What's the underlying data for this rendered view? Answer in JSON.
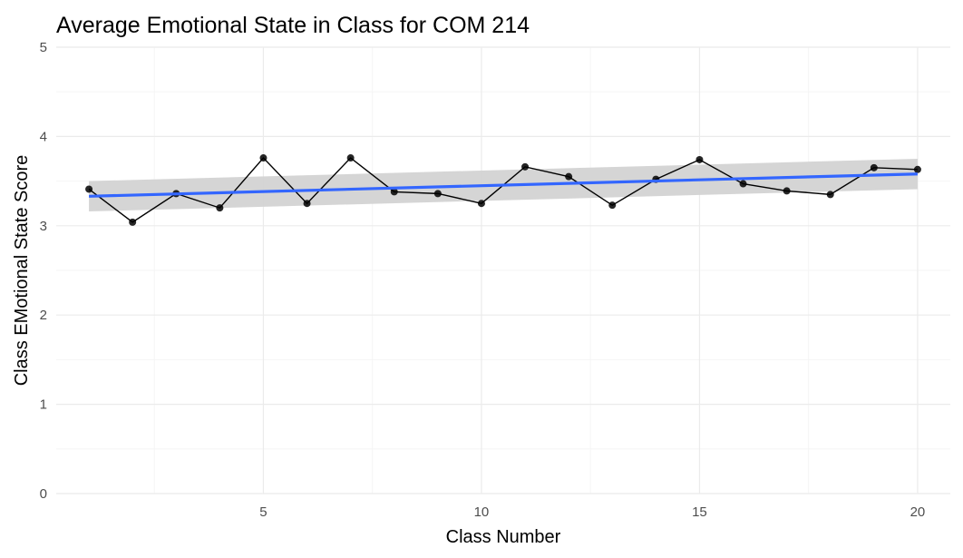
{
  "chart_data": {
    "type": "line",
    "title": "Average Emotional State in Class for COM 214",
    "xlabel": "Class Number",
    "ylabel": "Class EMotional State Score",
    "xlim": [
      0.25,
      20.75
    ],
    "ylim": [
      0,
      5
    ],
    "x_ticks": [
      5,
      10,
      15,
      20
    ],
    "y_ticks": [
      0,
      1,
      2,
      3,
      4,
      5
    ],
    "grid": true,
    "x": [
      1,
      2,
      3,
      4,
      5,
      6,
      7,
      8,
      9,
      10,
      11,
      12,
      13,
      14,
      15,
      16,
      17,
      18,
      19,
      20
    ],
    "values": [
      3.41,
      3.04,
      3.36,
      3.2,
      3.76,
      3.25,
      3.76,
      3.38,
      3.36,
      3.25,
      3.66,
      3.55,
      3.23,
      3.52,
      3.74,
      3.47,
      3.39,
      3.35,
      3.65,
      3.63
    ],
    "trend": {
      "start": 3.33,
      "end": 3.58,
      "ci_low_start": 3.16,
      "ci_high_start": 3.5,
      "ci_low_end": 3.41,
      "ci_high_end": 3.75
    },
    "colors": {
      "line": "#000000",
      "points": "#000000",
      "trend": "#3366FF",
      "band": "#d3d3d3",
      "grid_major": "#ebebeb",
      "grid_minor": "#f5f5f5"
    }
  }
}
